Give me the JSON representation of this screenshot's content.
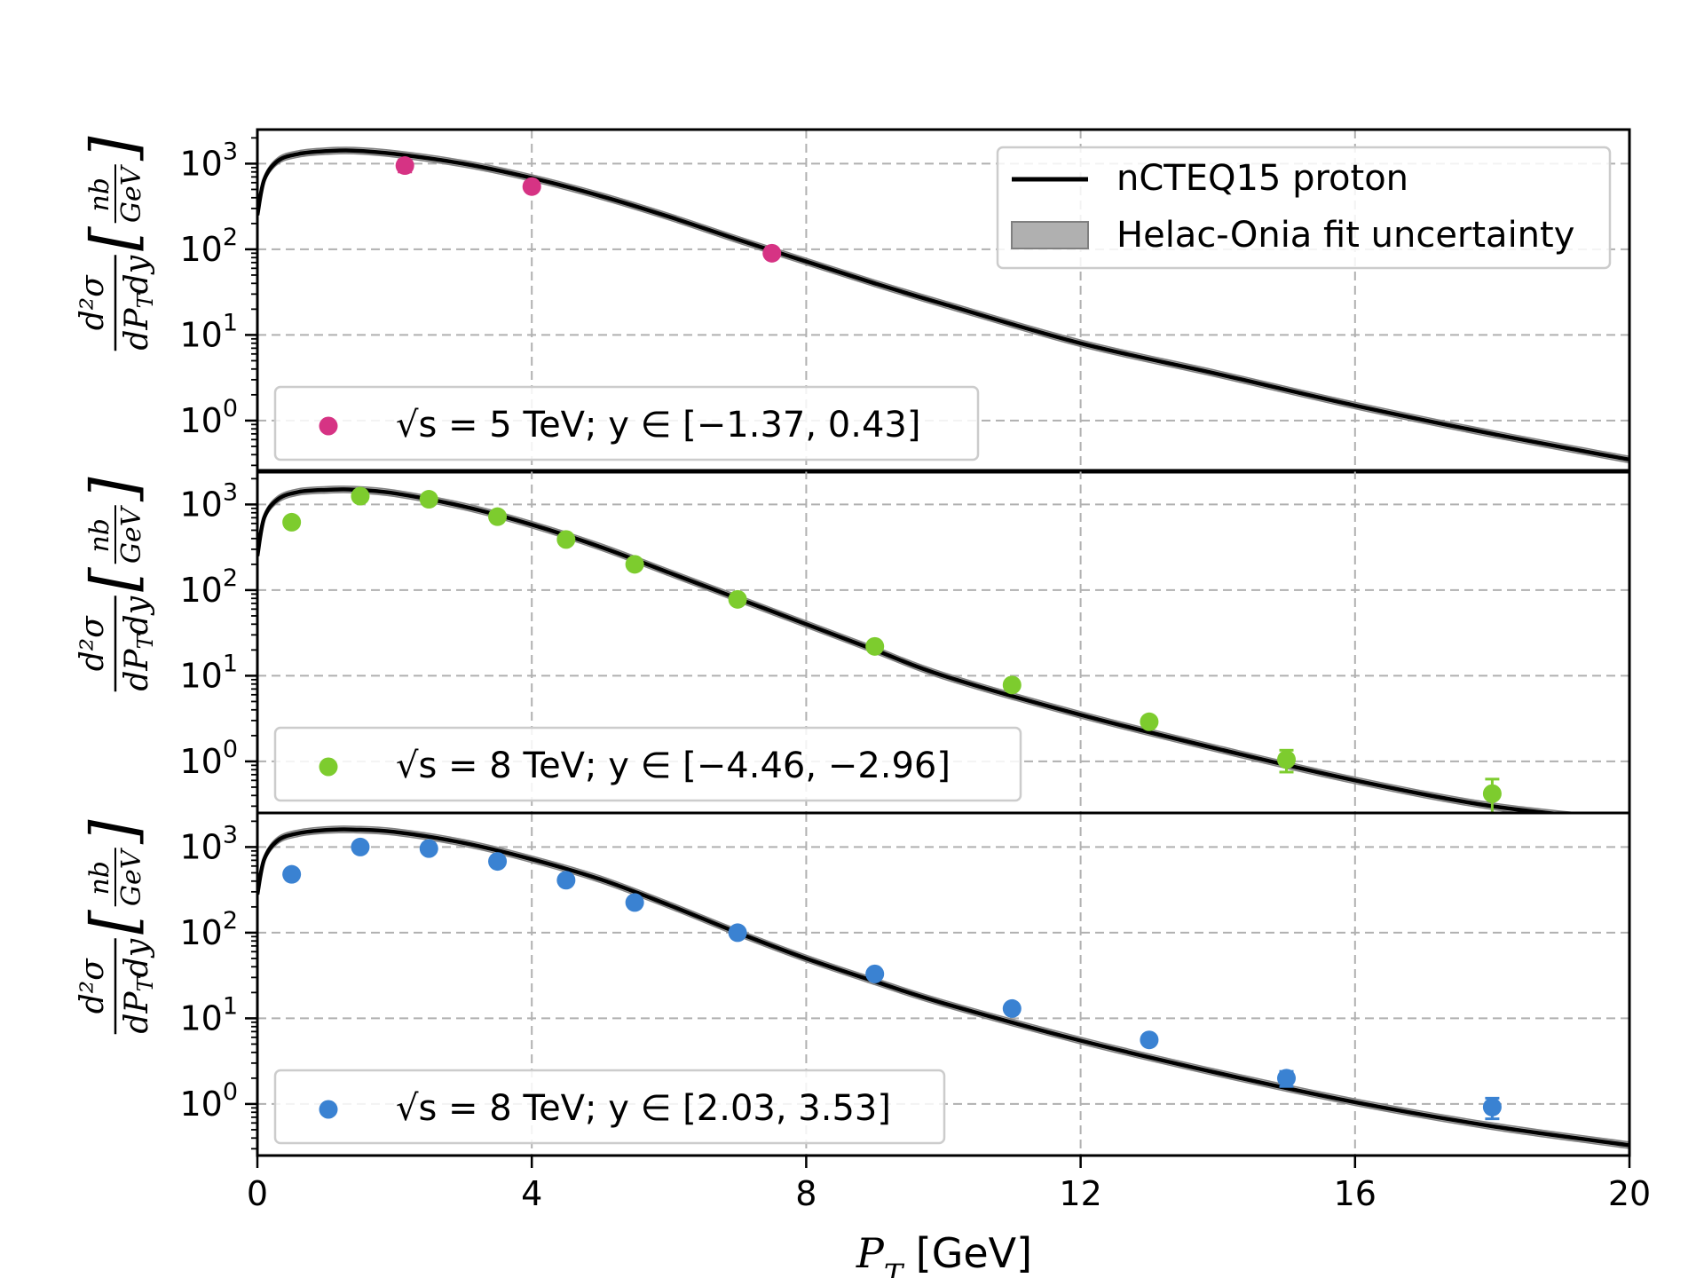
{
  "chart_data": {
    "type": "scatter",
    "xlabel": "P_T [GeV]",
    "xlim": [
      0,
      20
    ],
    "x_ticks": [
      "0",
      "4",
      "8",
      "12",
      "16",
      "20"
    ],
    "yscale": "log",
    "ylim": [
      0.25,
      2500
    ],
    "y_ticks": [
      "10^0",
      "10^1",
      "10^2",
      "10^3"
    ],
    "ylabel": "d^2σ/dP_T dy [nb/GeV]",
    "grid": true,
    "legend": {
      "position": "top-right",
      "entries": [
        {
          "label": "nCTEQ15 proton",
          "kind": "line",
          "color": "#000000"
        },
        {
          "label": "Helac-Onia fit uncertainty",
          "kind": "band",
          "color": "#b0b0b0"
        }
      ]
    },
    "panels": [
      {
        "label": "√s = 5 TeV;   y ∈ [−1.37, 0.43]",
        "color": "#d63384",
        "points": [
          {
            "x": 2.15,
            "y": 950,
            "err": 150
          },
          {
            "x": 4.0,
            "y": 540,
            "err": 40
          },
          {
            "x": 7.5,
            "y": 90,
            "err": 8
          }
        ],
        "theory": {
          "x": [
            0,
            0.1,
            0.3,
            0.6,
            1.0,
            1.4,
            2.0,
            3.0,
            4.0,
            5.0,
            6.0,
            7.0,
            8.0,
            9.0,
            10.0,
            12.0,
            14.0,
            16.0,
            18.0,
            20.0
          ],
          "y": [
            250,
            650,
            1080,
            1300,
            1400,
            1420,
            1300,
            1000,
            680,
            420,
            240,
            130,
            72,
            40,
            23,
            8,
            3.5,
            1.5,
            0.7,
            0.35
          ]
        }
      },
      {
        "label": "√s = 8 TeV;   y ∈ [−4.46, −2.96]",
        "color": "#7dcc2e",
        "points": [
          {
            "x": 0.5,
            "y": 620,
            "err": 30
          },
          {
            "x": 1.5,
            "y": 1250,
            "err": 60
          },
          {
            "x": 2.5,
            "y": 1150,
            "err": 50
          },
          {
            "x": 3.5,
            "y": 720,
            "err": 30
          },
          {
            "x": 4.5,
            "y": 390,
            "err": 20
          },
          {
            "x": 5.5,
            "y": 200,
            "err": 10
          },
          {
            "x": 7.0,
            "y": 78,
            "err": 4
          },
          {
            "x": 9.0,
            "y": 22,
            "err": 1.5
          },
          {
            "x": 11.0,
            "y": 7.8,
            "err": 0.6
          },
          {
            "x": 13.0,
            "y": 2.9,
            "err": 0.3
          },
          {
            "x": 15.0,
            "y": 1.05,
            "err": 0.3
          },
          {
            "x": 18.0,
            "y": 0.42,
            "err": 0.2
          }
        ],
        "theory": {
          "x": [
            0,
            0.1,
            0.3,
            0.6,
            1.0,
            1.4,
            2.0,
            3.0,
            4.0,
            5.0,
            6.0,
            7.0,
            8.0,
            9.0,
            10.0,
            12.0,
            14.0,
            16.0,
            18.0,
            20.0
          ],
          "y": [
            250,
            700,
            1150,
            1400,
            1480,
            1490,
            1350,
            950,
            580,
            320,
            160,
            80,
            40,
            20,
            10,
            3.5,
            1.4,
            0.6,
            0.3,
            0.2
          ]
        }
      },
      {
        "label": "√s = 8 TeV;   y ∈ [2.03, 3.53]",
        "color": "#3a82d2",
        "points": [
          {
            "x": 0.5,
            "y": 480,
            "err": 25
          },
          {
            "x": 1.5,
            "y": 1000,
            "err": 50
          },
          {
            "x": 2.5,
            "y": 960,
            "err": 45
          },
          {
            "x": 3.5,
            "y": 680,
            "err": 30
          },
          {
            "x": 4.5,
            "y": 410,
            "err": 20
          },
          {
            "x": 5.5,
            "y": 225,
            "err": 12
          },
          {
            "x": 7.0,
            "y": 100,
            "err": 5
          },
          {
            "x": 9.0,
            "y": 33,
            "err": 2
          },
          {
            "x": 11.0,
            "y": 13,
            "err": 1
          },
          {
            "x": 13.0,
            "y": 5.6,
            "err": 0.5
          },
          {
            "x": 15.0,
            "y": 2.0,
            "err": 0.4
          },
          {
            "x": 18.0,
            "y": 0.92,
            "err": 0.25
          }
        ],
        "theory": {
          "x": [
            0,
            0.1,
            0.3,
            0.6,
            1.0,
            1.4,
            2.0,
            3.0,
            4.0,
            5.0,
            6.0,
            7.0,
            8.0,
            9.0,
            10.0,
            12.0,
            14.0,
            16.0,
            18.0,
            20.0
          ],
          "y": [
            280,
            720,
            1200,
            1450,
            1580,
            1600,
            1500,
            1120,
            720,
            420,
            210,
            100,
            50,
            27,
            15,
            5.5,
            2.3,
            1.05,
            0.55,
            0.33
          ]
        }
      }
    ]
  }
}
